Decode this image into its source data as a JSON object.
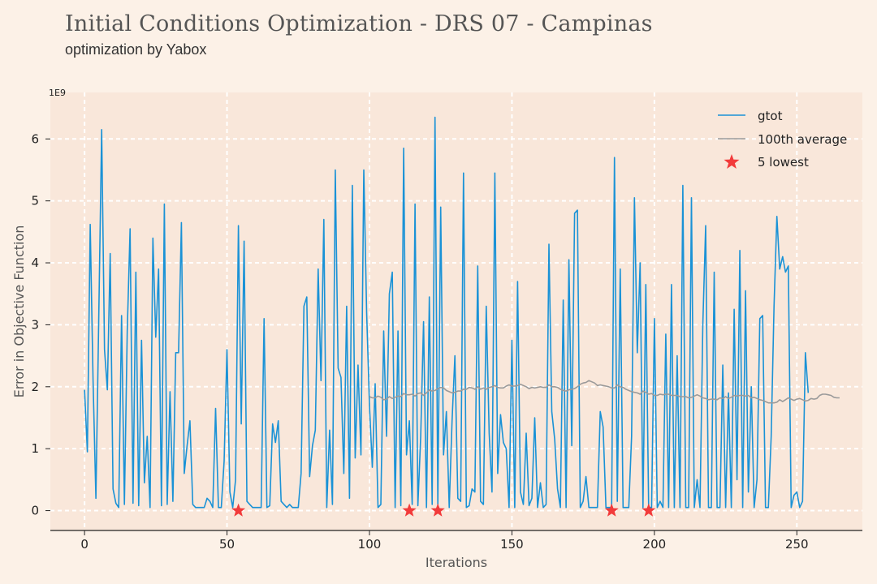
{
  "title": "Initial Conditions Optimization - DRS 07 - Campinas",
  "subtitle": "optimization by Yabox",
  "chart_data": {
    "type": "line",
    "xlabel": "Iterations",
    "ylabel": "Error in Objective Function",
    "y_scale_label": "1E9",
    "xlim": [
      -12,
      273
    ],
    "ylim": [
      -0.32,
      6.75
    ],
    "x_ticks": [
      0,
      50,
      100,
      150,
      200,
      250
    ],
    "y_ticks": [
      0,
      1,
      2,
      3,
      4,
      5,
      6
    ],
    "grid": true,
    "legend_position": "top-right",
    "colors": {
      "gtot": "#1a92d6",
      "average": "#9a9a9a",
      "lowest": "#f23b3b"
    },
    "series": [
      {
        "name": "gtot",
        "start": 0,
        "values": [
          1.95,
          0.95,
          4.62,
          2.1,
          0.2,
          3.1,
          6.15,
          2.6,
          1.95,
          4.15,
          0.35,
          0.12,
          0.05,
          3.15,
          0.1,
          2.9,
          4.55,
          0.12,
          3.85,
          0.08,
          2.75,
          0.45,
          1.2,
          0.05,
          4.4,
          2.8,
          3.9,
          0.08,
          4.95,
          0.1,
          1.92,
          0.15,
          2.55,
          2.55,
          4.65,
          0.6,
          1.05,
          1.45,
          0.1,
          0.05,
          0.05,
          0.05,
          0.05,
          0.2,
          0.15,
          0.05,
          1.65,
          0.05,
          0.05,
          0.8,
          2.6,
          0.3,
          0.05,
          0.5,
          4.6,
          1.4,
          4.35,
          0.15,
          0.1,
          0.05,
          0.05,
          0.05,
          0.05,
          3.1,
          0.05,
          0.08,
          1.4,
          1.1,
          1.45,
          0.15,
          0.1,
          0.05,
          0.1,
          0.05,
          0.05,
          0.05,
          0.6,
          3.3,
          3.45,
          0.55,
          1.05,
          1.3,
          3.9,
          2.1,
          4.7,
          0.05,
          1.3,
          0.1,
          5.5,
          2.3,
          2.15,
          0.6,
          3.3,
          0.2,
          5.25,
          0.85,
          2.35,
          0.9,
          5.5,
          3.2,
          1.7,
          0.7,
          2.05,
          0.05,
          0.1,
          2.9,
          1.2,
          3.5,
          3.85,
          0.05,
          2.9,
          0.08,
          5.85,
          0.9,
          1.45,
          0.1,
          4.95,
          0.08,
          1.2,
          3.05,
          0.05,
          3.45,
          0.1,
          6.35,
          0.1,
          4.9,
          0.9,
          1.6,
          0.05,
          1.45,
          2.5,
          0.2,
          0.15,
          5.45,
          0.05,
          0.08,
          0.35,
          0.3,
          3.95,
          0.15,
          0.1,
          3.3,
          1.25,
          0.3,
          5.45,
          0.6,
          1.55,
          1.1,
          1.0,
          0.05,
          2.75,
          0.05,
          3.7,
          0.3,
          0.1,
          1.25,
          0.08,
          0.2,
          1.5,
          0.05,
          0.45,
          0.05,
          0.1,
          4.3,
          1.6,
          1.15,
          0.35,
          0.05,
          3.4,
          0.05,
          4.05,
          1.05,
          4.8,
          4.85,
          0.05,
          0.15,
          0.55,
          0.05,
          0.05,
          0.05,
          0.05,
          1.6,
          1.35,
          0.05,
          0.05,
          0.05,
          5.7,
          0.15,
          3.9,
          0.05,
          0.05,
          0.05,
          1.2,
          5.05,
          2.55,
          4.0,
          0.05,
          3.65,
          0.05,
          0.05,
          3.1,
          0.05,
          0.15,
          0.05,
          2.85,
          0.05,
          3.65,
          0.05,
          2.5,
          0.05,
          5.25,
          0.05,
          0.05,
          5.05,
          0.05,
          0.5,
          0.05,
          3.0,
          4.6,
          0.05,
          0.05,
          3.85,
          0.05,
          0.05,
          2.35,
          0.05,
          1.9,
          0.05,
          3.25,
          0.5,
          4.2,
          0.05,
          3.55,
          0.3,
          2.0,
          0.05,
          0.5,
          3.1,
          3.15,
          0.05,
          0.05,
          1.2,
          3.3,
          4.75,
          3.9,
          4.1,
          3.85,
          3.95,
          0.05,
          0.25,
          0.3,
          0.05,
          0.15,
          2.55,
          1.9
        ]
      },
      {
        "name": "100th average",
        "start": 100,
        "values": [
          1.84,
          1.82,
          1.82,
          1.85,
          1.83,
          1.79,
          1.8,
          1.84,
          1.81,
          1.83,
          1.85,
          1.84,
          1.89,
          1.87,
          1.87,
          1.88,
          1.85,
          1.89,
          1.9,
          1.86,
          1.9,
          1.95,
          1.93,
          1.94,
          1.97,
          1.99,
          1.98,
          1.94,
          1.92,
          1.9,
          1.91,
          1.93,
          1.93,
          1.96,
          1.96,
          1.99,
          1.98,
          1.96,
          2.0,
          1.96,
          1.98,
          1.96,
          1.99,
          2.0,
          2.02,
          1.99,
          1.98,
          1.98,
          2.01,
          2.03,
          2.01,
          2.01,
          2.02,
          2.04,
          2.02,
          2.0,
          1.97,
          1.99,
          1.98,
          1.99,
          2.0,
          1.99,
          1.99,
          2.03,
          2.0,
          2.0,
          1.99,
          1.96,
          1.94,
          1.93,
          1.95,
          1.96,
          1.97,
          2.0,
          2.04,
          2.06,
          2.07,
          2.1,
          2.08,
          2.06,
          2.02,
          2.03,
          2.02,
          2.01,
          2.0,
          1.98,
          1.98,
          2.03,
          2.0,
          1.99,
          1.96,
          1.94,
          1.92,
          1.91,
          1.9,
          1.88,
          1.93,
          1.91,
          1.88,
          1.89,
          1.86,
          1.86,
          1.88,
          1.87,
          1.88,
          1.88,
          1.86,
          1.86,
          1.86,
          1.84,
          1.84,
          1.84,
          1.82,
          1.83,
          1.85,
          1.87,
          1.85,
          1.82,
          1.81,
          1.79,
          1.8,
          1.8,
          1.79,
          1.82,
          1.81,
          1.84,
          1.81,
          1.83,
          1.86,
          1.85,
          1.86,
          1.86,
          1.85,
          1.86,
          1.82,
          1.83,
          1.81,
          1.79,
          1.78,
          1.76,
          1.74,
          1.74,
          1.74,
          1.75,
          1.79,
          1.76,
          1.79,
          1.82,
          1.8,
          1.78,
          1.8,
          1.81,
          1.79,
          1.77,
          1.78,
          1.81,
          1.8,
          1.81,
          1.86,
          1.88,
          1.88,
          1.87,
          1.86,
          1.83,
          1.82,
          1.82
        ]
      },
      {
        "name": "5 lowest",
        "x": [
          54,
          114,
          124,
          185,
          198
        ],
        "values": [
          0,
          0,
          0,
          0,
          0
        ]
      }
    ],
    "legend": [
      "gtot",
      "100th average",
      "5 lowest"
    ]
  }
}
